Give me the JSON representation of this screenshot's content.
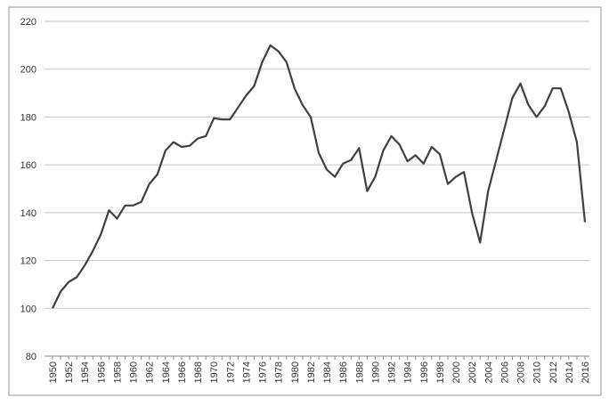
{
  "chart_data": {
    "type": "line",
    "categories": [
      "1950",
      null,
      "1952",
      null,
      "1954",
      null,
      "1956",
      null,
      "1958",
      null,
      "1960",
      null,
      "1962",
      null,
      "1964",
      null,
      "1966",
      null,
      "1968",
      null,
      "1970",
      null,
      "1972",
      null,
      "1974",
      null,
      "1976",
      null,
      "1978",
      null,
      "1980",
      null,
      "1982",
      null,
      "1984",
      null,
      "1986",
      null,
      "1988",
      null,
      "1990",
      null,
      "1992",
      null,
      "1994",
      null,
      "1996",
      null,
      "1998",
      null,
      "2000",
      null,
      "2002",
      null,
      "2004",
      null,
      "2006",
      null,
      "2008",
      null,
      "2010",
      null,
      "2012",
      null,
      "2014",
      null,
      "2016"
    ],
    "values": [
      100,
      107,
      111,
      113,
      118,
      124,
      131,
      141,
      137.5,
      143,
      143,
      144.5,
      152,
      156,
      166,
      169.5,
      167.5,
      168,
      171,
      172,
      179.5,
      179,
      179,
      184,
      189,
      193,
      203,
      210,
      207.5,
      203,
      192,
      185,
      180,
      165,
      158,
      155,
      160.5,
      162,
      167,
      149,
      155,
      166,
      172,
      168.5,
      161.5,
      164,
      160.5,
      167.5,
      164.5,
      152,
      155,
      157,
      140,
      127.5,
      149,
      162,
      175,
      188,
      194,
      185,
      180,
      184.5,
      192,
      192,
      182,
      169.5,
      136
    ],
    "color": "#404040",
    "ylim": [
      80,
      220
    ],
    "yticks": [
      80,
      100,
      120,
      140,
      160,
      180,
      200,
      220
    ],
    "grid": true
  }
}
